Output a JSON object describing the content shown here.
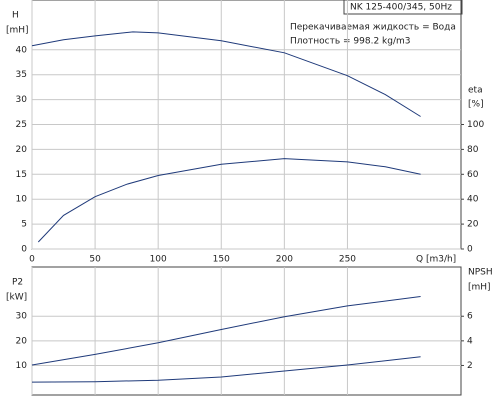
{
  "chart_data": [
    {
      "type": "line",
      "title": "NK 125-400/345, 50Hz",
      "annotations": [
        "Перекачиваемая жидкость = Вода",
        "Плотность = 998.2 kg/m3"
      ],
      "y_label": "H",
      "y_unit": "[mH]",
      "y2_label": "eta",
      "y2_unit": "[%]",
      "x_label": "Q [m3/h]",
      "xlim": [
        0,
        340
      ],
      "xticks": [
        0,
        50,
        100,
        150,
        200,
        250
      ],
      "ylim": [
        0,
        50
      ],
      "yticks": [
        0,
        5,
        10,
        15,
        20,
        25,
        30,
        35,
        40
      ],
      "y2lim": [
        0,
        200
      ],
      "y2ticks": [
        0,
        20,
        40,
        60,
        80,
        100
      ],
      "grid": true,
      "series": [
        {
          "color": "#1f3a7a",
          "x": [
            0,
            25,
            50,
            80,
            100,
            150,
            200,
            250,
            280,
            308
          ],
          "values": [
            40.8,
            42.0,
            42.8,
            43.6,
            43.4,
            41.8,
            39.4,
            34.8,
            31.0,
            26.6
          ]
        },
        {
          "color": "#1f3a7a",
          "axis": "y2",
          "x": [
            5,
            25,
            50,
            75,
            100,
            150,
            200,
            250,
            280,
            308
          ],
          "values": [
            5.6,
            27,
            42,
            52,
            59,
            68,
            72.6,
            70,
            66,
            60
          ]
        }
      ]
    },
    {
      "type": "line",
      "y_label": "P2",
      "y_unit": "[kW]",
      "y2_label": "NPSH",
      "y2_unit": "[mH]",
      "xlim": [
        0,
        340
      ],
      "xticks": [
        0,
        50,
        100,
        150,
        200,
        250
      ],
      "ylim": [
        -2,
        50
      ],
      "yticks": [
        10,
        20,
        30
      ],
      "y2lim": [
        -0.4,
        10
      ],
      "y2ticks": [
        2,
        4,
        6
      ],
      "grid": true,
      "series": [
        {
          "color": "#1f3a7a",
          "x": [
            0,
            50,
            100,
            150,
            200,
            250,
            308
          ],
          "values": [
            10.2,
            14.5,
            19.2,
            24.6,
            29.8,
            34.2,
            38
          ]
        },
        {
          "color": "#1f3a7a",
          "axis": "y2",
          "x": [
            0,
            50,
            100,
            150,
            200,
            250,
            308
          ],
          "values": [
            0.65,
            0.68,
            0.8,
            1.06,
            1.55,
            2.04,
            2.7
          ]
        }
      ]
    }
  ]
}
